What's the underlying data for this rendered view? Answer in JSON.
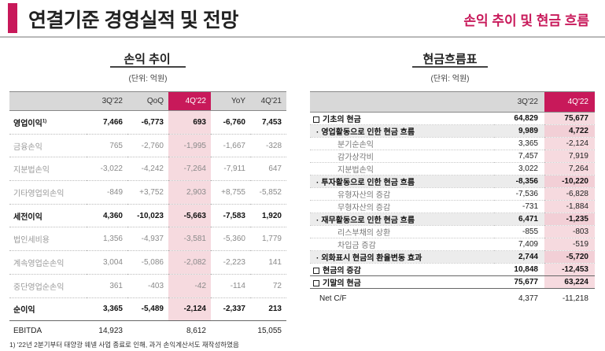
{
  "header": {
    "title": "연결기준 경영실적 및 전망",
    "right_title": "손익 추이 및 현금 흐름"
  },
  "pl": {
    "title": "손익 추이",
    "unit": "(단위: 억원)",
    "columns": [
      "",
      "3Q'22",
      "QoQ",
      "4Q'22",
      "YoY",
      "4Q'21"
    ],
    "rows": [
      {
        "label": "영업이익",
        "sup": "1)",
        "cells": [
          "7,466",
          "-6,773",
          "693",
          "-6,760",
          "7,453"
        ],
        "style": "bold"
      },
      {
        "label": "금융손익",
        "cells": [
          "765",
          "-2,760",
          "-1,995",
          "-1,667",
          "-328"
        ],
        "style": "sub"
      },
      {
        "label": "지분법손익",
        "cells": [
          "-3,022",
          "-4,242",
          "-7,264",
          "-7,911",
          "647"
        ],
        "style": "sub"
      },
      {
        "label": "기타영업외손익",
        "cells": [
          "-849",
          "+3,752",
          "2,903",
          "+8,755",
          "-5,852"
        ],
        "style": "sub"
      },
      {
        "label": "세전이익",
        "cells": [
          "4,360",
          "-10,023",
          "-5,663",
          "-7,583",
          "1,920"
        ],
        "style": "bold"
      },
      {
        "label": "법인세비용",
        "cells": [
          "1,356",
          "-4,937",
          "-3,581",
          "-5,360",
          "1,779"
        ],
        "style": "sub"
      },
      {
        "label": "계속영업순손익",
        "cells": [
          "3,004",
          "-5,086",
          "-2,082",
          "-2,223",
          "141"
        ],
        "style": "sub"
      },
      {
        "label": "중단영업순손익",
        "cells": [
          "361",
          "-403",
          "-42",
          "-114",
          "72"
        ],
        "style": "sub"
      },
      {
        "label": "순이익",
        "cells": [
          "3,365",
          "-5,489",
          "-2,124",
          "-2,337",
          "213"
        ],
        "style": "bold"
      }
    ],
    "footer": {
      "label": "EBITDA",
      "cells": [
        "14,923",
        "",
        "8,612",
        "",
        "15,055"
      ]
    }
  },
  "cf": {
    "title": "현금흐름표",
    "unit": "(단위: 억원)",
    "columns": [
      "",
      "3Q'22",
      "4Q'22"
    ],
    "rows": [
      {
        "label": "기초의 현금",
        "marker": "box",
        "cells": [
          "64,829",
          "75,677"
        ],
        "level": "l0"
      },
      {
        "label": "영업활동으로 인한 현금 흐름",
        "marker": "dot",
        "cells": [
          "9,989",
          "4,722"
        ],
        "level": "l1"
      },
      {
        "label": "분기순손익",
        "cells": [
          "3,365",
          "-2,124"
        ],
        "level": "l2"
      },
      {
        "label": "감가상각비",
        "cells": [
          "7,457",
          "7,919"
        ],
        "level": "l2"
      },
      {
        "label": "지분법손익",
        "cells": [
          "3,022",
          "7,264"
        ],
        "level": "l2"
      },
      {
        "label": "투자활동으로 인한 현금 흐름",
        "marker": "dot",
        "cells": [
          "-8,356",
          "-10,220"
        ],
        "level": "l1"
      },
      {
        "label": "유형자산의 증감",
        "cells": [
          "-7,536",
          "-6,828"
        ],
        "level": "l2"
      },
      {
        "label": "무형자산의 증감",
        "cells": [
          "-731",
          "-1,884"
        ],
        "level": "l2"
      },
      {
        "label": "재무활동으로 인한 현금 흐름",
        "marker": "dot",
        "cells": [
          "6,471",
          "-1,235"
        ],
        "level": "l1"
      },
      {
        "label": "리스부채의 상환",
        "cells": [
          "-855",
          "-803"
        ],
        "level": "l2"
      },
      {
        "label": "차입금 증감",
        "cells": [
          "7,409",
          "-519"
        ],
        "level": "l2"
      },
      {
        "label": "외화표시 현금의 환율변동 효과",
        "marker": "dot",
        "cells": [
          "2,744",
          "-5,720"
        ],
        "level": "l1"
      },
      {
        "label": "현금의 증감",
        "marker": "box",
        "cells": [
          "10,848",
          "-12,453"
        ],
        "level": "l0"
      },
      {
        "label": "기말의 현금",
        "marker": "box",
        "cells": [
          "75,677",
          "63,224"
        ],
        "level": "l0",
        "total": true
      }
    ],
    "footer": {
      "label": "Net C/F",
      "cells": [
        "4,377",
        "-11,218"
      ]
    }
  },
  "footnote": "1) '22년 2분기부터 태양광 웨넬 사업 종료로 인해, 과거 손익계산서도 재작성하였음"
}
